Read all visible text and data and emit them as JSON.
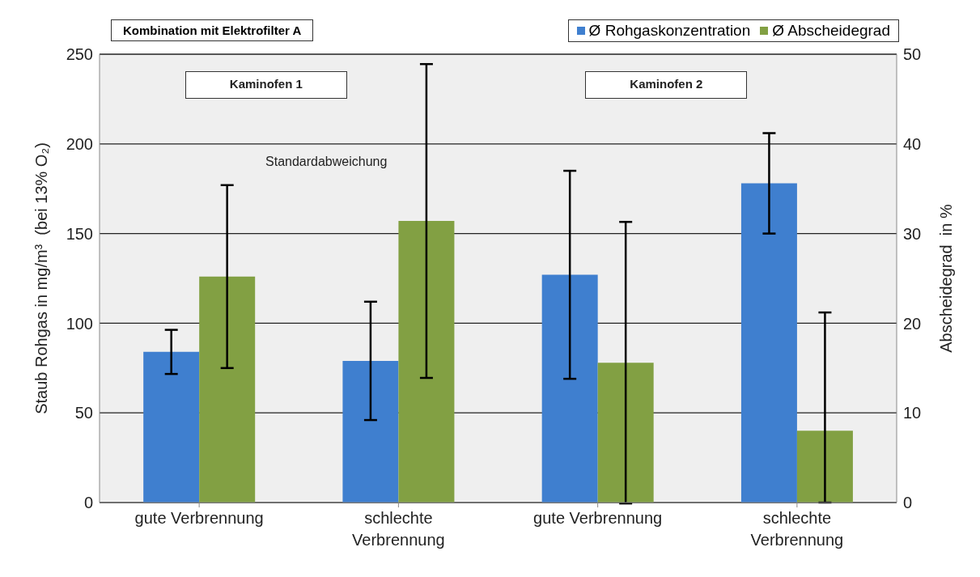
{
  "chart_data": {
    "type": "bar",
    "title": "Kombination mit Elektrofilter A",
    "ylabel": "Staub Rohgas in mg/m³  (bei 13% O₂)",
    "y2label": "Abscheidegrad  in %",
    "categories": [
      "gute Verbrennung",
      "schlechte Verbrennung",
      "gute Verbrennung",
      "schlechte Verbrennung"
    ],
    "series": [
      {
        "name": "Ø Rohgaskonzentration",
        "color": "#3f7fcf",
        "values": [
          84,
          79,
          127,
          178
        ],
        "errors": [
          12.3,
          33,
          58,
          28
        ]
      },
      {
        "name": "Ø Abscheidegrad",
        "color": "#82a043",
        "axis": "y2",
        "values": [
          25.2,
          31.4,
          15.6,
          8
        ],
        "errors": [
          10.2,
          17.5,
          15.7,
          [
            0,
            21.2
          ]
        ]
      }
    ],
    "ylim": [
      0,
      250
    ],
    "yticks": [
      0,
      50,
      100,
      150,
      200,
      250
    ],
    "y2lim": [
      0,
      50
    ],
    "y2ticks": [
      0,
      10,
      20,
      30,
      40,
      50
    ],
    "grid": "y",
    "legend": "top right",
    "annotations": [
      "Kaminofen 1",
      "Kaminofen 2",
      "Standardabweichung"
    ]
  }
}
